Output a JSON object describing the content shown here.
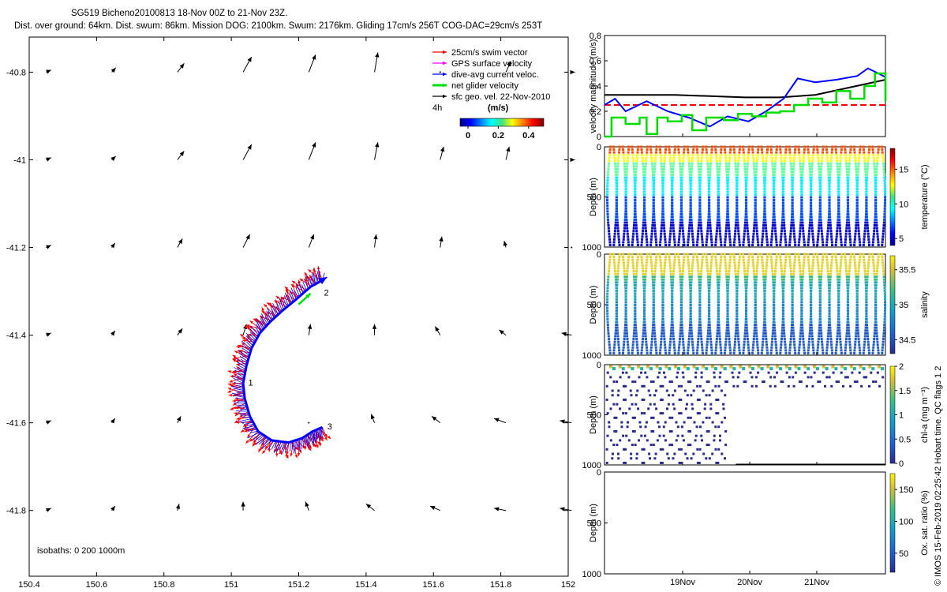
{
  "header": {
    "line1": "SG519 Bicheno20100813 18-Nov 00Z to 21-Nov 23Z.",
    "line2": "Dist. over ground: 64km. Dist. swum: 86km. Mission DOG: 2100km. Swum: 2176km. Gliding 17cm/s 256T COG-DAC=29cm/s 253T"
  },
  "side_label": "© IMOS 15-Feb-2019 02:25:42 Hobart time. QC flags 1  2",
  "legend": {
    "items": [
      {
        "label": "25cm/s swim vector",
        "color": "#ff0000"
      },
      {
        "label": "GPS surface velocity",
        "color": "#ff00ff"
      },
      {
        "label": "dive-avg current veloc.",
        "color": "#0000ff"
      },
      {
        "label": "net glider velocity",
        "color": "#00dd00"
      },
      {
        "label": "sfc geo. vel. 22-Nov-2010",
        "color": "#000000"
      }
    ],
    "duration": "4h",
    "units": "(m/s)",
    "colorbar_ticks": [
      "0",
      "0.2",
      "0.4"
    ]
  },
  "isobaths": "isobaths: 0   200  1000m",
  "colors": {
    "swim": "#ff0000",
    "current": "#0000ff",
    "net": "#00dd00",
    "geo": "#000000"
  },
  "chart_data": [
    {
      "type": "vector-map",
      "xlim": [
        150.4,
        152.0
      ],
      "ylim": [
        -41.95,
        -40.72
      ],
      "xticks": [
        "150.4",
        "150.6",
        "150.8",
        "151",
        "151.2",
        "151.4",
        "151.6",
        "151.8",
        "152"
      ],
      "yticks": [
        "-40.8",
        "-41",
        "-41.2",
        "-41.4",
        "-41.6",
        "-41.8"
      ],
      "track_labels": [
        "1",
        "2",
        "3"
      ],
      "track": [
        [
          151.27,
          -41.61
        ],
        [
          151.24,
          -41.62
        ],
        [
          151.21,
          -41.635
        ],
        [
          151.17,
          -41.645
        ],
        [
          151.12,
          -41.64
        ],
        [
          151.08,
          -41.62
        ],
        [
          151.055,
          -41.585
        ],
        [
          151.04,
          -41.545
        ],
        [
          151.035,
          -41.51
        ],
        [
          151.045,
          -41.47
        ],
        [
          151.06,
          -41.43
        ],
        [
          151.085,
          -41.395
        ],
        [
          151.115,
          -41.37
        ],
        [
          151.15,
          -41.345
        ],
        [
          151.19,
          -41.32
        ],
        [
          151.235,
          -41.29
        ],
        [
          151.27,
          -41.275
        ]
      ],
      "geo_vectors_deg": [
        [
          0.015,
          0.005
        ],
        [
          0.012,
          0.01
        ],
        [
          0.02,
          0.02
        ],
        [
          0.025,
          0.035
        ],
        [
          0.02,
          0.04
        ],
        [
          0.01,
          0.045
        ],
        [
          0.0,
          0.0
        ],
        [
          0.015,
          0.025
        ],
        [
          0.01,
          0.0
        ],
        [
          0.015,
          0.005
        ],
        [
          0.012,
          0.008
        ],
        [
          0.02,
          0.02
        ],
        [
          0.025,
          0.035
        ],
        [
          0.02,
          0.04
        ],
        [
          0.01,
          0.04
        ],
        [
          0.01,
          0.03
        ],
        [
          0.01,
          0.03
        ],
        [
          0.01,
          0.0
        ],
        [
          0.015,
          0.005
        ],
        [
          0.01,
          0.01
        ],
        [
          0.015,
          0.02
        ],
        [
          0.02,
          0.03
        ],
        [
          0.015,
          0.03
        ],
        [
          0.005,
          0.03
        ],
        [
          0.005,
          0.025
        ],
        [
          -0.005,
          0.015
        ],
        [
          0.0,
          0.0
        ],
        [
          0.015,
          0.005
        ],
        [
          0.01,
          0.01
        ],
        [
          0.015,
          0.015
        ],
        [
          0.01,
          0.025
        ],
        [
          0.005,
          0.025
        ],
        [
          0.0,
          0.025
        ],
        [
          -0.015,
          0.02
        ],
        [
          -0.02,
          0.012
        ],
        [
          -0.03,
          0.005
        ],
        [
          0.015,
          0.005
        ],
        [
          0.01,
          0.01
        ],
        [
          0.01,
          0.015
        ],
        [
          0.0,
          0.0
        ],
        [
          0.0,
          0.0
        ],
        [
          -0.01,
          0.02
        ],
        [
          -0.025,
          0.015
        ],
        [
          -0.035,
          0.01
        ],
        [
          -0.035,
          0.005
        ],
        [
          0.015,
          0.005
        ],
        [
          0.01,
          0.01
        ],
        [
          0.005,
          0.015
        ],
        [
          0.0,
          0.02
        ],
        [
          -0.01,
          0.02
        ],
        [
          -0.025,
          0.015
        ],
        [
          -0.03,
          0.01
        ],
        [
          -0.035,
          0.005
        ],
        [
          -0.035,
          0.005
        ]
      ]
    },
    {
      "type": "line",
      "ylabel": "velocity magnitude (m/s)",
      "ylim": [
        0,
        0.8
      ],
      "yticks": [
        "0",
        "0.2",
        "0.4",
        "0.6",
        "0.8"
      ],
      "xlim": [
        0,
        4
      ],
      "series": [
        {
          "color": "#ff0000",
          "x": [
            0,
            4
          ],
          "y": [
            0.25,
            0.25
          ]
        },
        {
          "color": "#000000",
          "x": [
            0,
            0.5,
            1,
            1.5,
            2,
            2.5,
            3,
            3.5,
            4
          ],
          "y": [
            0.33,
            0.33,
            0.33,
            0.32,
            0.31,
            0.31,
            0.33,
            0.39,
            0.45
          ]
        },
        {
          "color": "#0000ff",
          "x": [
            0,
            0.15,
            0.3,
            0.6,
            0.9,
            1.2,
            1.5,
            1.75,
            2.05,
            2.3,
            2.55,
            2.75,
            3.0,
            3.3,
            3.6,
            3.75,
            3.9,
            4.0
          ],
          "y": [
            0.25,
            0.3,
            0.2,
            0.28,
            0.2,
            0.15,
            0.08,
            0.16,
            0.12,
            0.2,
            0.3,
            0.46,
            0.43,
            0.45,
            0.48,
            0.54,
            0.5,
            0.47
          ]
        },
        {
          "color": "#00dd00",
          "x": [
            0,
            0.1,
            0.3,
            0.5,
            0.6,
            0.75,
            0.9,
            1.1,
            1.25,
            1.45,
            1.7,
            1.9,
            2.1,
            2.3,
            2.5,
            2.7,
            2.9,
            3.1,
            3.3,
            3.5,
            3.7,
            3.85,
            4.0
          ],
          "y": [
            0.0,
            0.15,
            0.1,
            0.15,
            0.02,
            0.15,
            0.12,
            0.17,
            0.05,
            0.15,
            0.13,
            0.18,
            0.16,
            0.19,
            0.2,
            0.25,
            0.3,
            0.27,
            0.36,
            0.3,
            0.4,
            0.5,
            0.28
          ]
        }
      ]
    },
    {
      "type": "scatter",
      "ylabel": "Depth (m)",
      "clabel": "temperature (°C)",
      "ylim": [
        1000,
        0
      ],
      "yticks": [
        "0",
        "500",
        "1000"
      ],
      "cticks": [
        "5",
        "10",
        "15"
      ],
      "clim": [
        4,
        18
      ]
    },
    {
      "type": "scatter",
      "ylabel": "Depth (m)",
      "clabel": "salinity",
      "ylim": [
        1000,
        0
      ],
      "yticks": [
        "0",
        "500",
        "1000"
      ],
      "cticks": [
        "34.5",
        "35",
        "35.5"
      ],
      "clim": [
        34.3,
        35.7
      ]
    },
    {
      "type": "scatter",
      "ylabel": "Depth (m)",
      "clabel": "chl-a (mg m⁻³)",
      "ylim": [
        1000,
        0
      ],
      "yticks": [
        "0",
        "500",
        "1000"
      ],
      "cticks": [
        "0",
        "0.5",
        "1",
        "1.5",
        "2"
      ],
      "clim": [
        0,
        2
      ]
    },
    {
      "type": "scatter",
      "ylabel": "Depth (m)",
      "clabel": "Ox. sat. ratio (%)",
      "ylim": [
        1000,
        0
      ],
      "yticks": [
        "0",
        "500",
        "1000"
      ],
      "cticks": [
        "50",
        "100",
        "150"
      ],
      "clim": [
        20,
        175
      ],
      "xticks": [
        "19Nov",
        "20Nov",
        "21Nov"
      ]
    }
  ]
}
